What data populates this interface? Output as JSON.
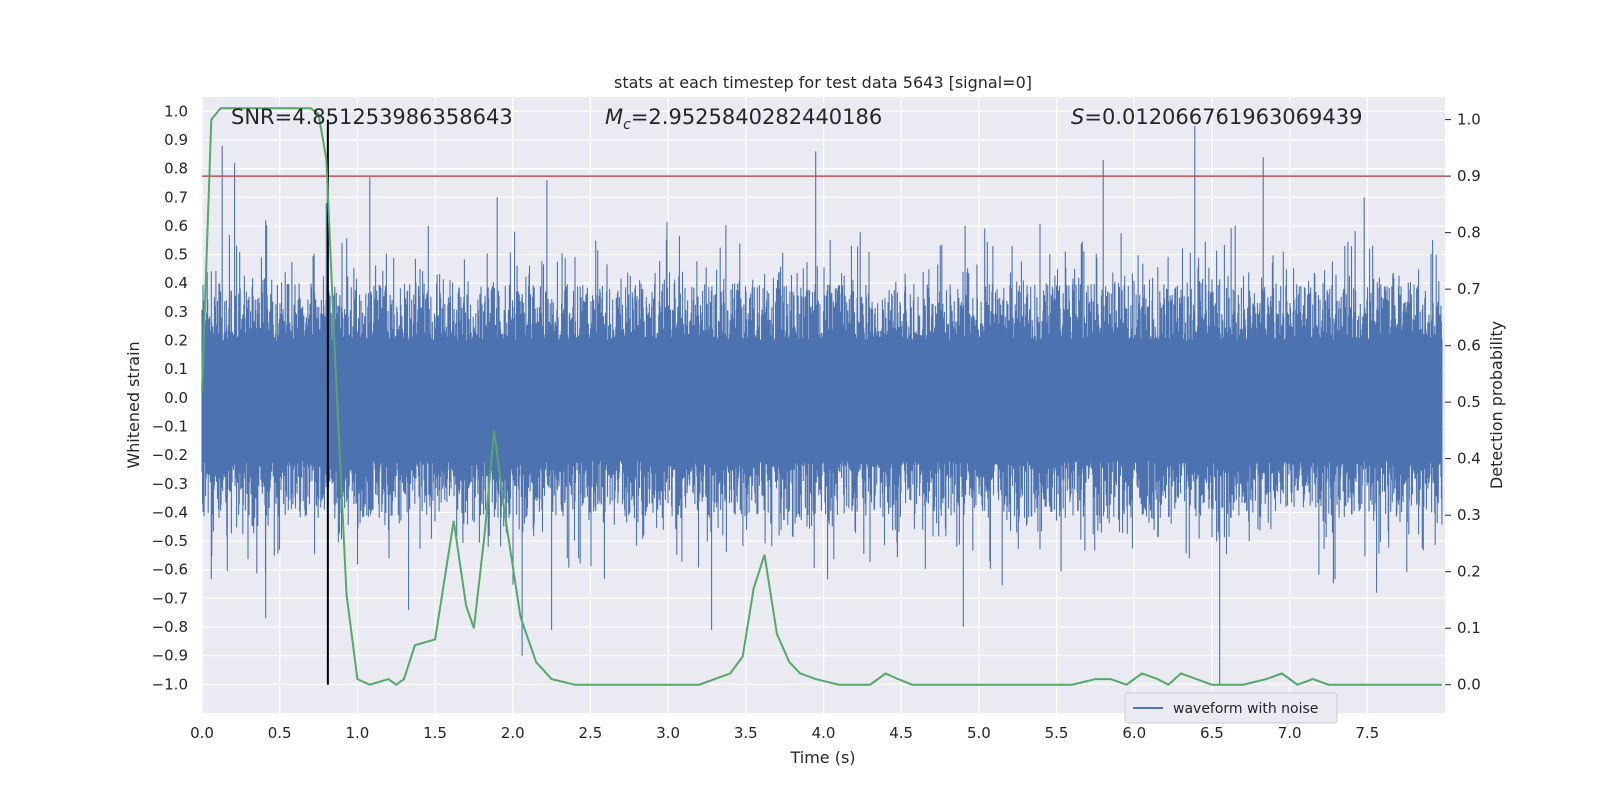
{
  "chart_data": {
    "type": "line",
    "title": "stats at each timestep for test data 5643 [signal=0]",
    "xlabel": "Time (s)",
    "ylabel": "Whitened strain",
    "y2label": "Detection probability",
    "xlim": [
      0.0,
      8.0
    ],
    "ylim": [
      -1.1,
      1.05
    ],
    "y2lim": [
      -0.05,
      1.04
    ],
    "xticks": [
      "0.0",
      "0.5",
      "1.0",
      "1.5",
      "2.0",
      "2.5",
      "3.0",
      "3.5",
      "4.0",
      "4.5",
      "5.0",
      "5.5",
      "6.0",
      "6.5",
      "7.0",
      "7.5"
    ],
    "xtick_values": [
      0,
      0.5,
      1,
      1.5,
      2,
      2.5,
      3,
      3.5,
      4,
      4.5,
      5,
      5.5,
      6,
      6.5,
      7,
      7.5
    ],
    "yticks": [
      "1.0",
      "0.9",
      "0.8",
      "0.7",
      "0.6",
      "0.5",
      "0.4",
      "0.3",
      "0.2",
      "0.1",
      "0.0",
      "−0.1",
      "−0.2",
      "−0.3",
      "−0.4",
      "−0.5",
      "−0.6",
      "−0.7",
      "−0.8",
      "−0.9",
      "−1.0"
    ],
    "ytick_values": [
      1,
      0.9,
      0.8,
      0.7,
      0.6,
      0.5,
      0.4,
      0.3,
      0.2,
      0.1,
      0,
      -0.1,
      -0.2,
      -0.3,
      -0.4,
      -0.5,
      -0.6,
      -0.7,
      -0.8,
      -0.9,
      -1.0
    ],
    "y2ticks": [
      "1.0",
      "0.9",
      "0.8",
      "0.7",
      "0.6",
      "0.5",
      "0.4",
      "0.3",
      "0.2",
      "0.1",
      "0.0"
    ],
    "y2tick_values": [
      1,
      0.9,
      0.8,
      0.7,
      0.6,
      0.5,
      0.4,
      0.3,
      0.2,
      0.1,
      0
    ],
    "grid": true,
    "legend": {
      "position": "lower-right",
      "entries": [
        "waveform with noise"
      ]
    },
    "annotations": {
      "snr": "SNR=4.851253986358643",
      "mc_symbol": "M",
      "mc_subscript": "c",
      "mc_value": "=2.9525840282440186",
      "s_symbol": "S",
      "s_value": "=0.012066761963069439"
    },
    "threshold": {
      "value": 0.9,
      "axis": "y2",
      "color": "#c44e52"
    },
    "marker_time": 0.81,
    "series": [
      {
        "name": "waveform with noise",
        "axis": "y",
        "color": "#4c72b0",
        "kind": "dense-noise",
        "t_range": [
          0.0,
          7.98
        ],
        "amplitude_typical": 0.35,
        "peaks_positive": [
          [
            0.13,
            0.88
          ],
          [
            0.21,
            0.82
          ],
          [
            0.41,
            0.62
          ],
          [
            0.8,
            0.68
          ],
          [
            1.08,
            0.77
          ],
          [
            1.9,
            0.7
          ],
          [
            2.22,
            0.76
          ],
          [
            3.95,
            0.86
          ],
          [
            5.8,
            0.83
          ],
          [
            6.39,
            0.95
          ],
          [
            6.83,
            0.84
          ],
          [
            7.48,
            0.7
          ]
        ],
        "peaks_negative": [
          [
            0.06,
            -0.63
          ],
          [
            0.41,
            -0.77
          ],
          [
            1.33,
            -0.74
          ],
          [
            2.06,
            -0.9
          ],
          [
            2.25,
            -0.81
          ],
          [
            3.28,
            -0.81
          ],
          [
            4.9,
            -0.8
          ],
          [
            6.55,
            -1.0
          ],
          [
            7.56,
            -0.68
          ]
        ]
      },
      {
        "name": "detection probability",
        "axis": "y2",
        "color": "#55a868",
        "x": [
          0.0,
          0.06,
          0.12,
          0.3,
          0.5,
          0.7,
          0.75,
          0.8,
          0.86,
          0.93,
          1.0,
          1.08,
          1.2,
          1.25,
          1.3,
          1.37,
          1.5,
          1.62,
          1.7,
          1.75,
          1.82,
          1.88,
          1.95,
          2.05,
          2.15,
          2.25,
          2.4,
          2.6,
          2.8,
          3.0,
          3.2,
          3.3,
          3.4,
          3.48,
          3.55,
          3.62,
          3.7,
          3.78,
          3.85,
          3.95,
          4.1,
          4.3,
          4.4,
          4.48,
          4.57,
          4.7,
          4.9,
          5.1,
          5.3,
          5.6,
          5.75,
          5.85,
          5.95,
          6.05,
          6.15,
          6.22,
          6.3,
          6.4,
          6.5,
          6.7,
          6.85,
          6.95,
          7.05,
          7.15,
          7.25,
          7.4,
          7.98
        ],
        "y": [
          0.52,
          1.0,
          1.02,
          1.02,
          1.02,
          1.02,
          1.01,
          0.93,
          0.56,
          0.16,
          0.01,
          0.0,
          0.01,
          0.0,
          0.01,
          0.07,
          0.08,
          0.29,
          0.14,
          0.1,
          0.27,
          0.45,
          0.3,
          0.12,
          0.04,
          0.01,
          0.0,
          0.0,
          0.0,
          0.0,
          0.0,
          0.01,
          0.02,
          0.05,
          0.17,
          0.23,
          0.09,
          0.04,
          0.02,
          0.01,
          0.0,
          0.0,
          0.02,
          0.01,
          0.0,
          0.0,
          0.0,
          0.0,
          0.0,
          0.0,
          0.01,
          0.01,
          0.0,
          0.02,
          0.01,
          0.0,
          0.02,
          0.01,
          0.0,
          0.0,
          0.01,
          0.02,
          0.0,
          0.01,
          0.0,
          0.0,
          0.0
        ]
      }
    ]
  }
}
